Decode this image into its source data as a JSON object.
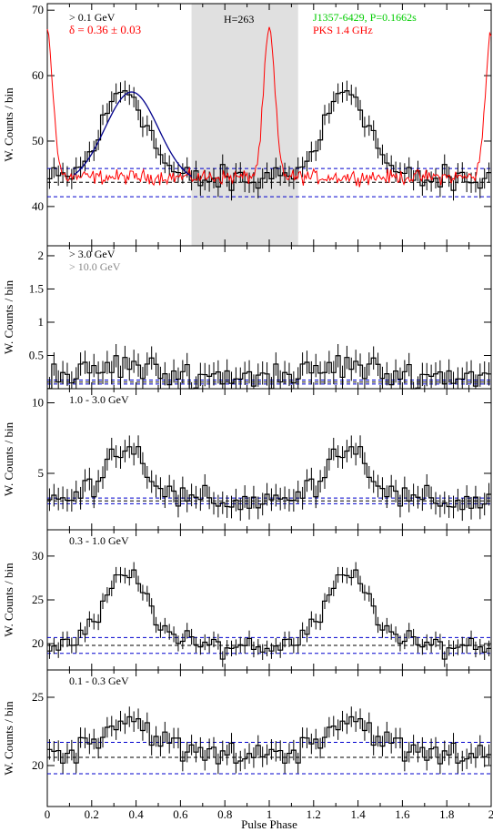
{
  "figure": {
    "xlabel": "Pulse Phase",
    "ylabel": "W. Counts / bin",
    "xlim": [
      0,
      2
    ],
    "x_ticks": [
      "0",
      "0.2",
      "0.4",
      "0.6",
      "0.8",
      "1",
      "1.2",
      "1.4",
      "1.6",
      "1.8",
      "2"
    ]
  },
  "colors": {
    "histogram": "#000000",
    "fit": "#00008b",
    "background_level": "#0000cd",
    "radio": "#ff0000",
    "title_green": "#00cc00",
    "highlight_band": "#e0e0e0"
  },
  "chart_data": [
    {
      "type": "line",
      "panel": "top",
      "labels": {
        "energy": "> 0.1 GeV",
        "delta": "δ = 0.36 ± 0.03",
        "htest": "H=263",
        "pulsar": "J1357-6429, P=0.1662s",
        "radio": "PKS 1.4 GHz"
      },
      "ylim": [
        34,
        71
      ],
      "y_ticks": [
        40,
        50,
        60,
        70
      ],
      "shaded_phase": [
        0.65,
        1.13
      ],
      "bg_lines": [
        {
          "y": 45.8,
          "color": "blue"
        },
        {
          "y": 43.7,
          "color": "black"
        },
        {
          "y": 41.5,
          "color": "blue"
        }
      ],
      "gaussian_fit": {
        "amplitude": 14,
        "center": 0.38,
        "sigma": 0.12,
        "baseline": 43.5,
        "range": [
          0.12,
          0.65
        ]
      },
      "profile": {
        "base": 44,
        "peak_amplitude": 14,
        "peak_phase": 0.35,
        "peak_width": 0.1,
        "noise": 1.8,
        "error": 3.1
      },
      "radio_profile": {
        "base": 44.5,
        "peak": 67,
        "peak_phase": 0.0,
        "peak_width": 0.025,
        "noise": 0.9
      }
    },
    {
      "type": "line",
      "panel": "ge3",
      "labels": {
        "energy": "> 3.0 GeV",
        "energy2": "> 10.0 GeV"
      },
      "ylim": [
        0,
        2.15
      ],
      "y_ticks": [
        0.5,
        1,
        1.5,
        2
      ],
      "bg_lines": [
        {
          "y": 0.13,
          "color": "blue"
        },
        {
          "y": 0.1,
          "color": "black"
        },
        {
          "y": 0.07,
          "color": "blue"
        }
      ],
      "profile": {
        "base": 0.2,
        "peak_amplitude": 0.15,
        "peak_phase": 0.35,
        "peak_width": 0.1,
        "noise": 0.18,
        "error": 0.35
      }
    },
    {
      "type": "line",
      "panel": "1to3",
      "labels": {
        "energy": "1.0 - 3.0 GeV"
      },
      "ylim": [
        1,
        11
      ],
      "y_ticks": [
        5,
        10
      ],
      "bg_lines": [
        {
          "y": 3.25,
          "color": "blue"
        },
        {
          "y": 3.05,
          "color": "black"
        },
        {
          "y": 2.85,
          "color": "blue"
        }
      ],
      "profile": {
        "base": 3.0,
        "peak_amplitude": 4.0,
        "peak_phase": 0.35,
        "peak_width": 0.1,
        "noise": 0.8,
        "error": 1.6
      }
    },
    {
      "type": "line",
      "panel": "0.3to1",
      "labels": {
        "energy": "0.3 - 1.0 GeV"
      },
      "ylim": [
        17,
        33
      ],
      "y_ticks": [
        20,
        25,
        30
      ],
      "bg_lines": [
        {
          "y": 20.7,
          "color": "blue"
        },
        {
          "y": 19.8,
          "color": "black"
        },
        {
          "y": 18.9,
          "color": "blue"
        }
      ],
      "profile": {
        "base": 19.8,
        "peak_amplitude": 8,
        "peak_phase": 0.36,
        "peak_width": 0.1,
        "noise": 1.0,
        "error": 1.8
      }
    },
    {
      "type": "line",
      "panel": "0.1to0.3",
      "labels": {
        "energy": "0.1 - 0.3 GeV"
      },
      "ylim": [
        17,
        27
      ],
      "y_ticks": [
        20,
        25
      ],
      "bg_lines": [
        {
          "y": 21.7,
          "color": "blue"
        },
        {
          "y": 20.6,
          "color": "black"
        },
        {
          "y": 19.4,
          "color": "blue"
        }
      ],
      "profile": {
        "base": 20.8,
        "peak_amplitude": 2.6,
        "peak_phase": 0.36,
        "peak_width": 0.12,
        "noise": 0.8,
        "error": 1.5
      }
    }
  ]
}
